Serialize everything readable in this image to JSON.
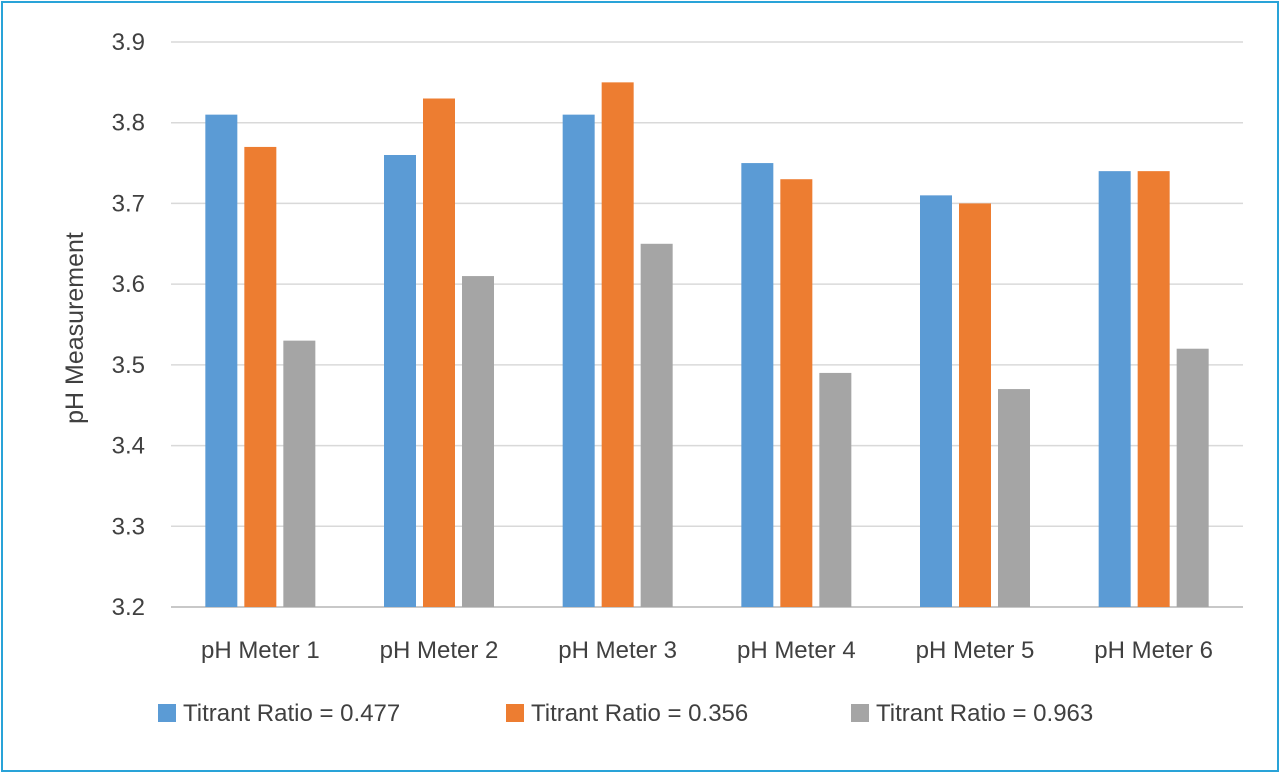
{
  "chart_data": {
    "type": "bar",
    "title": "",
    "xlabel": "",
    "ylabel": "pH Measurement",
    "ylim": [
      3.2,
      3.9
    ],
    "yticks": [
      "3.2",
      "3.3",
      "3.4",
      "3.5",
      "3.6",
      "3.7",
      "3.8",
      "3.9"
    ],
    "grid": true,
    "legend_position": "bottom",
    "categories": [
      "pH Meter 1",
      "pH Meter 2",
      "pH Meter 3",
      "pH Meter 4",
      "pH Meter 5",
      "pH Meter 6"
    ],
    "series": [
      {
        "name": "Titrant Ratio = 0.477",
        "color": "#5b9bd5",
        "values": [
          3.81,
          3.76,
          3.81,
          3.75,
          3.71,
          3.74
        ]
      },
      {
        "name": "Titrant Ratio = 0.356",
        "color": "#ed7d31",
        "values": [
          3.77,
          3.83,
          3.85,
          3.73,
          3.7,
          3.74
        ]
      },
      {
        "name": "Titrant Ratio = 0.963",
        "color": "#a5a5a5",
        "values": [
          3.53,
          3.61,
          3.65,
          3.49,
          3.47,
          3.52
        ]
      }
    ]
  }
}
